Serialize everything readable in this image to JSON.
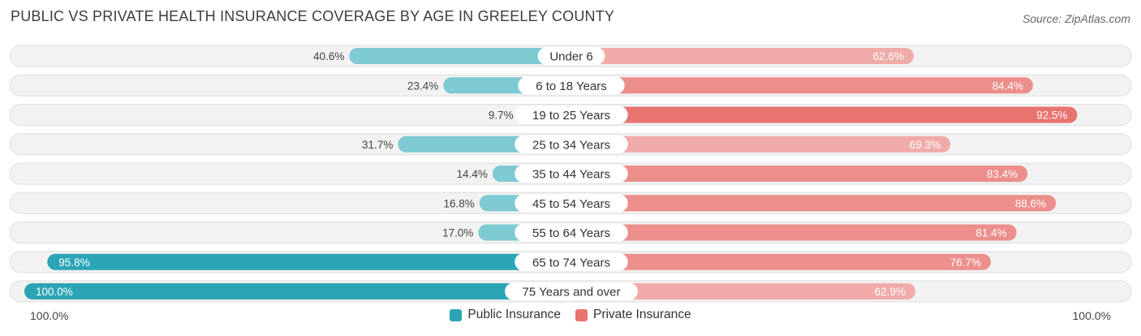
{
  "title": "PUBLIC VS PRIVATE HEALTH INSURANCE COVERAGE BY AGE IN GREELEY COUNTY",
  "source": "Source: ZipAtlas.com",
  "colors": {
    "public_dark": "#2ba5b5",
    "public_light": "#7dcad3",
    "private_dark": "#e8736f",
    "private_light": "#f0aba9",
    "row_bg": "#f2f2f2",
    "row_border": "#dedede"
  },
  "chart_data": {
    "type": "bar",
    "orientation": "horizontal-diverging",
    "categories": [
      "Under 6",
      "6 to 18 Years",
      "19 to 25 Years",
      "25 to 34 Years",
      "35 to 44 Years",
      "45 to 54 Years",
      "55 to 64 Years",
      "65 to 74 Years",
      "75 Years and over"
    ],
    "series": [
      {
        "name": "Public Insurance",
        "values": [
          40.6,
          23.4,
          9.7,
          31.7,
          14.4,
          16.8,
          17.0,
          95.8,
          100.0
        ],
        "labels": [
          "40.6%",
          "23.4%",
          "9.7%",
          "31.7%",
          "14.4%",
          "16.8%",
          "17.0%",
          "95.8%",
          "100.0%"
        ]
      },
      {
        "name": "Private Insurance",
        "values": [
          62.6,
          84.4,
          92.5,
          69.3,
          83.4,
          88.6,
          81.4,
          76.7,
          62.9
        ],
        "labels": [
          "62.6%",
          "84.4%",
          "92.5%",
          "69.3%",
          "83.4%",
          "88.6%",
          "81.4%",
          "76.7%",
          "62.9%"
        ]
      }
    ],
    "xlim": [
      0,
      100
    ],
    "axis_left_label": "100.0%",
    "axis_right_label": "100.0%",
    "legend_position": "bottom-center"
  }
}
